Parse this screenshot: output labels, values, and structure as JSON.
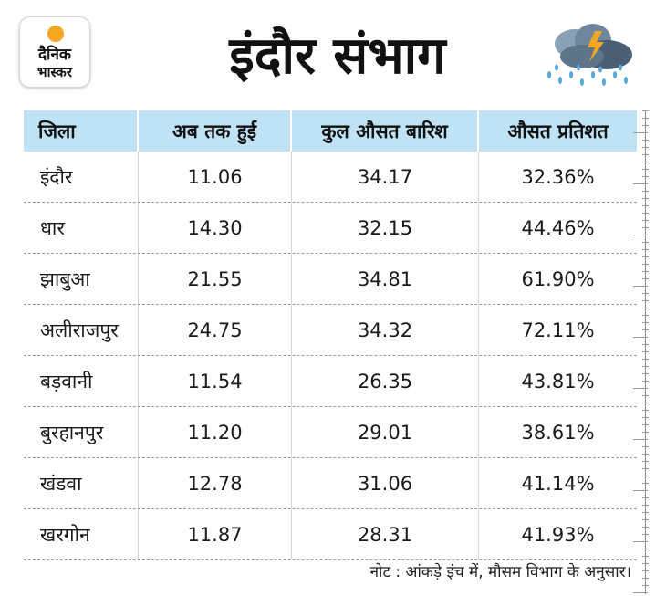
{
  "logo": {
    "line1": "दैनिक",
    "line2": "भास्कर"
  },
  "title": "इंदौर संभाग",
  "table": {
    "headers": [
      "जिला",
      "अब तक हुई",
      "कुल औसत बारिश",
      "औसत प्रतिशत"
    ],
    "rows": [
      [
        "इंदौर",
        "11.06",
        "34.17",
        "32.36%"
      ],
      [
        "धार",
        "14.30",
        "32.15",
        "44.46%"
      ],
      [
        "झाबुआ",
        "21.55",
        "34.81",
        "61.90%"
      ],
      [
        "अलीराजपुर",
        "24.75",
        "34.32",
        "72.11%"
      ],
      [
        "बड़वानी",
        "11.54",
        "26.35",
        "43.81%"
      ],
      [
        "बुरहानपुर",
        "11.20",
        "29.01",
        "38.61%"
      ],
      [
        "खंडवा",
        "12.78",
        "31.06",
        "41.14%"
      ],
      [
        "खरगोन",
        "11.87",
        "28.31",
        "41.93%"
      ]
    ]
  },
  "note": "नोट : आंकड़े इंच में, मौसम विभाग के अनुसार।",
  "colors": {
    "header_bg": "#bfe3f5",
    "logo_accent": "#f5a623"
  }
}
